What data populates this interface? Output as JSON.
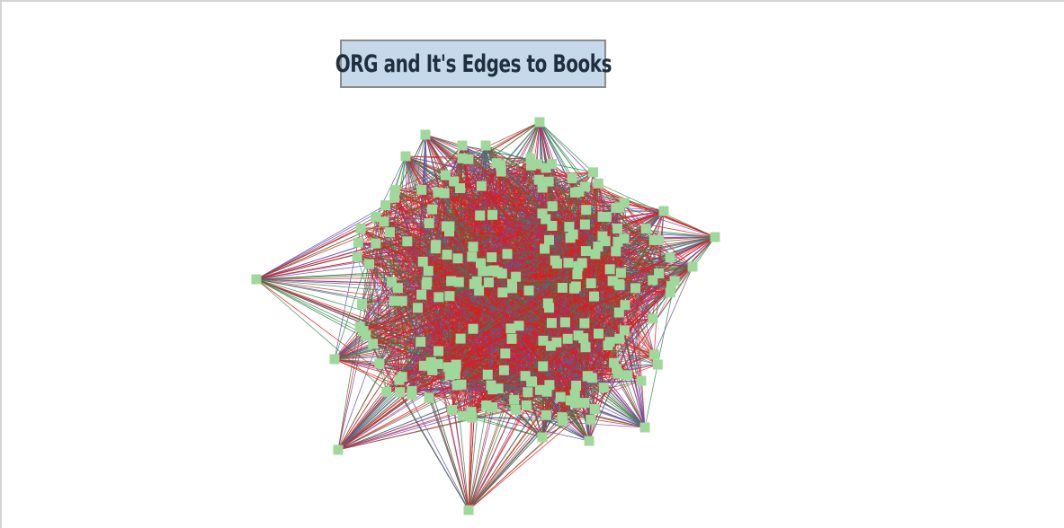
{
  "title": "ORG and It's Edges to Books",
  "colors": {
    "background": "#ffffff",
    "title_box_fill": "#c5d9ea",
    "title_box_border": "#8c8c8c",
    "node_fill": "#9fd89b",
    "edge_colors": [
      "#e01b1b",
      "#6b4fa8",
      "#2e8b4a"
    ]
  },
  "graph": {
    "layout": "force-directed network",
    "node_shape": "square"
  }
}
